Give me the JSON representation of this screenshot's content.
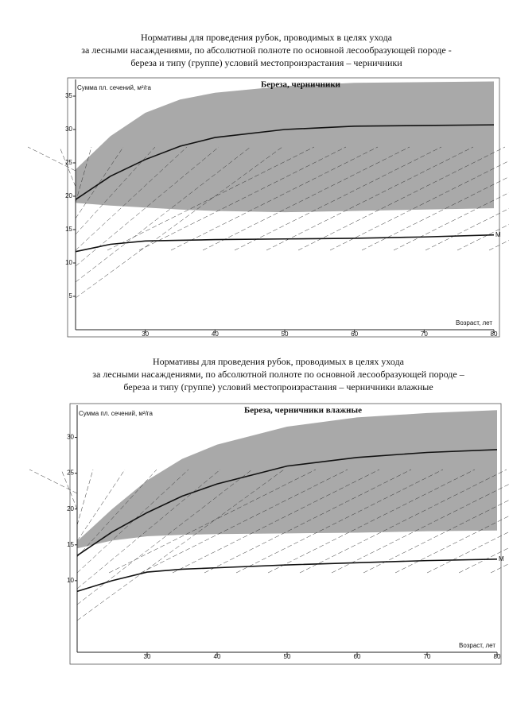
{
  "chart_data": [
    {
      "type": "line",
      "heading": [
        "Нормативы для проведения рубок, проводимых в целях ухода",
        "за лесными насаждениями, по абсолютной полноте по основной лесообразующей породе -",
        "береза и типу (группе) условий местопроизрастания – черничники"
      ],
      "title": "Береза, черничники",
      "ylabel": "Сумма пл. сечений, м²/га",
      "xlabel": "Возраст, лет",
      "x": [
        20,
        25,
        30,
        35,
        40,
        50,
        60,
        70,
        80
      ],
      "xlim": [
        20,
        80
      ],
      "xticks": [
        30,
        40,
        50,
        60,
        70,
        80
      ],
      "ylim": [
        0,
        37.5
      ],
      "yticks": [
        5,
        10,
        15,
        20,
        25,
        30,
        35
      ],
      "band": {
        "color": "#a9a9a9",
        "upper": [
          24,
          29,
          32.5,
          34.5,
          35.5,
          36.5,
          37,
          37.1,
          37.2
        ],
        "lower": [
          19,
          18.6,
          18.3,
          18,
          17.8,
          17.6,
          17.8,
          18,
          18.2
        ]
      },
      "series": [
        {
          "color": "#111111",
          "values": [
            19.5,
            23,
            25.5,
            27.5,
            28.8,
            30,
            30.5,
            30.6,
            30.7
          ]
        },
        {
          "name": "М",
          "color": "#111111",
          "values": [
            11.7,
            12.8,
            13.3,
            13.4,
            13.5,
            13.6,
            13.7,
            13.9,
            14.2
          ]
        }
      ]
    },
    {
      "type": "line",
      "heading": [
        "Нормативы для проведения рубок, проводимых в целях ухода",
        "за лесными насаждениями, по абсолютной полноте по основной лесообразующей породе –",
        "береза и типу (группе) условий местопроизрастания – черничники влажные"
      ],
      "title": "Береза, черничники влажные",
      "ylabel": "Сумма пл. сечений, м²/га",
      "xlabel": "Возраст, лет",
      "x": [
        20,
        25,
        30,
        35,
        40,
        50,
        60,
        70,
        80
      ],
      "xlim": [
        20,
        80
      ],
      "xticks": [
        30,
        40,
        50,
        60,
        70,
        80
      ],
      "ylim": [
        0,
        34.5
      ],
      "yticks": [
        10,
        15,
        20,
        25,
        30
      ],
      "band": {
        "color": "#a9a9a9",
        "upper": [
          15.5,
          20,
          24,
          27,
          29,
          31.5,
          32.8,
          33.4,
          33.8
        ],
        "lower": [
          14.5,
          15.6,
          16.2,
          16.4,
          16.5,
          16.6,
          16.7,
          16.9,
          17
        ]
      },
      "series": [
        {
          "color": "#111111",
          "values": [
            13.5,
            16.8,
            19.5,
            21.8,
            23.5,
            26,
            27.2,
            27.9,
            28.3
          ]
        },
        {
          "name": "М",
          "color": "#111111",
          "values": [
            8.5,
            10,
            11.2,
            11.6,
            11.8,
            12.2,
            12.5,
            12.8,
            13
          ]
        }
      ]
    }
  ]
}
